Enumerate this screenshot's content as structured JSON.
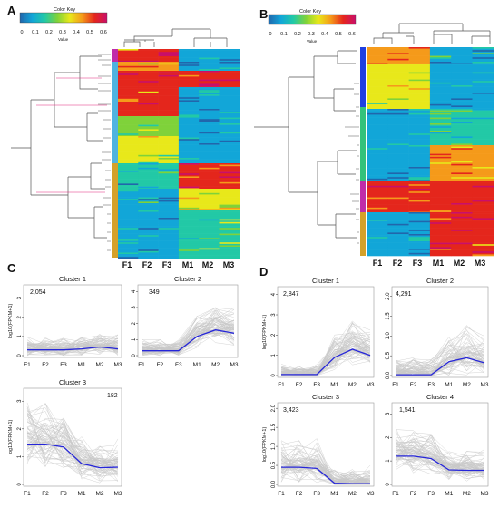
{
  "panel_labels": [
    "A",
    "B",
    "C",
    "D"
  ],
  "color_key": {
    "title": "Color Key",
    "subtitle": "Value",
    "ticks": [
      "0",
      "0.1",
      "0.2",
      "0.3",
      "0.4",
      "0.5",
      "0.6"
    ],
    "colors": [
      "#2166ac",
      "#12a6d8",
      "#22c9a6",
      "#7fd23a",
      "#e8e81a",
      "#f59a1a",
      "#e4261c",
      "#c90f6a"
    ]
  },
  "heatmap_A": {
    "columns": [
      "F1",
      "F2",
      "F3",
      "M1",
      "M2",
      "M3"
    ],
    "cluster_colors": [
      "#c02ca8",
      "#4fb3e0",
      "#d4a12a"
    ]
  },
  "heatmap_B": {
    "columns": [
      "F1",
      "F2",
      "F3",
      "M1",
      "M2",
      "M3"
    ],
    "cluster_colors": [
      "#1f3fe0",
      "#33c27a",
      "#c02ca8",
      "#d4a12a"
    ]
  },
  "chart_data": [
    {
      "type": "line",
      "panel": "C",
      "title": "Cluster 1",
      "count": "2,054",
      "ylabel": "log10(FPKM+1)",
      "x": [
        "F1",
        "F2",
        "F3",
        "M1",
        "M2",
        "M3"
      ],
      "yticks": [
        "0",
        "1",
        "2",
        "3"
      ],
      "ylim": [
        0,
        3.6
      ],
      "series": [
        {
          "values": [
            0.3,
            0.3,
            0.3,
            0.35,
            0.45,
            0.35
          ],
          "color": "#2626d9"
        }
      ]
    },
    {
      "type": "line",
      "panel": "C",
      "title": "Cluster 2",
      "count": "349",
      "ylabel": "",
      "x": [
        "F1",
        "F2",
        "F3",
        "M1",
        "M2",
        "M3"
      ],
      "yticks": [
        "0",
        "1",
        "2",
        "3",
        "4"
      ],
      "ylim": [
        0,
        4.3
      ],
      "series": [
        {
          "values": [
            0.3,
            0.3,
            0.3,
            1.2,
            1.6,
            1.4
          ],
          "color": "#2626d9"
        }
      ]
    },
    {
      "type": "line",
      "panel": "C",
      "title": "Cluster 3",
      "count": "182",
      "ylabel": "log10(FPKM+1)",
      "x": [
        "F1",
        "F2",
        "F3",
        "M1",
        "M2",
        "M3"
      ],
      "yticks": [
        "0",
        "1",
        "2",
        "3"
      ],
      "ylim": [
        0,
        3.4
      ],
      "series": [
        {
          "values": [
            1.45,
            1.45,
            1.35,
            0.75,
            0.6,
            0.62
          ],
          "color": "#2626d9"
        }
      ]
    },
    {
      "type": "line",
      "panel": "D",
      "title": "Cluster 1",
      "count": "2,847",
      "ylabel": "log10(FPKM+1)",
      "x": [
        "F1",
        "F2",
        "F3",
        "M1",
        "M2",
        "M3"
      ],
      "yticks": [
        "0",
        "1",
        "2",
        "3",
        "4"
      ],
      "ylim": [
        0,
        4.3
      ],
      "series": [
        {
          "values": [
            0.05,
            0.05,
            0.05,
            0.9,
            1.3,
            1.0
          ],
          "color": "#2626d9"
        }
      ]
    },
    {
      "type": "line",
      "panel": "D",
      "title": "Cluster 2",
      "count": "4,291",
      "ylabel": "",
      "x": [
        "F1",
        "F2",
        "F3",
        "M1",
        "M2",
        "M3"
      ],
      "yticks": [
        "0.0",
        "0.5",
        "1.0",
        "1.5",
        "2.0"
      ],
      "ylim": [
        0,
        2.2
      ],
      "series": [
        {
          "values": [
            0.02,
            0.02,
            0.02,
            0.35,
            0.45,
            0.32
          ],
          "color": "#2626d9"
        }
      ]
    },
    {
      "type": "line",
      "panel": "D",
      "title": "Cluster 3",
      "count": "3,423",
      "ylabel": "log10(FPKM+1)",
      "x": [
        "F1",
        "F2",
        "F3",
        "M1",
        "M2",
        "M3"
      ],
      "yticks": [
        "0.0",
        "0.5",
        "1.0",
        "1.5",
        "2.0"
      ],
      "ylim": [
        0,
        2.1
      ],
      "series": [
        {
          "values": [
            0.45,
            0.45,
            0.42,
            0.03,
            0.02,
            0.02
          ],
          "color": "#2626d9"
        }
      ]
    },
    {
      "type": "line",
      "panel": "D",
      "title": "Cluster 4",
      "count": "1,541",
      "ylabel": "",
      "x": [
        "F1",
        "F2",
        "F3",
        "M1",
        "M2",
        "M3"
      ],
      "yticks": [
        "0",
        "1",
        "2",
        "3"
      ],
      "ylim": [
        0,
        3.4
      ],
      "series": [
        {
          "values": [
            1.2,
            1.2,
            1.1,
            0.62,
            0.6,
            0.6
          ],
          "color": "#2626d9"
        }
      ]
    }
  ]
}
